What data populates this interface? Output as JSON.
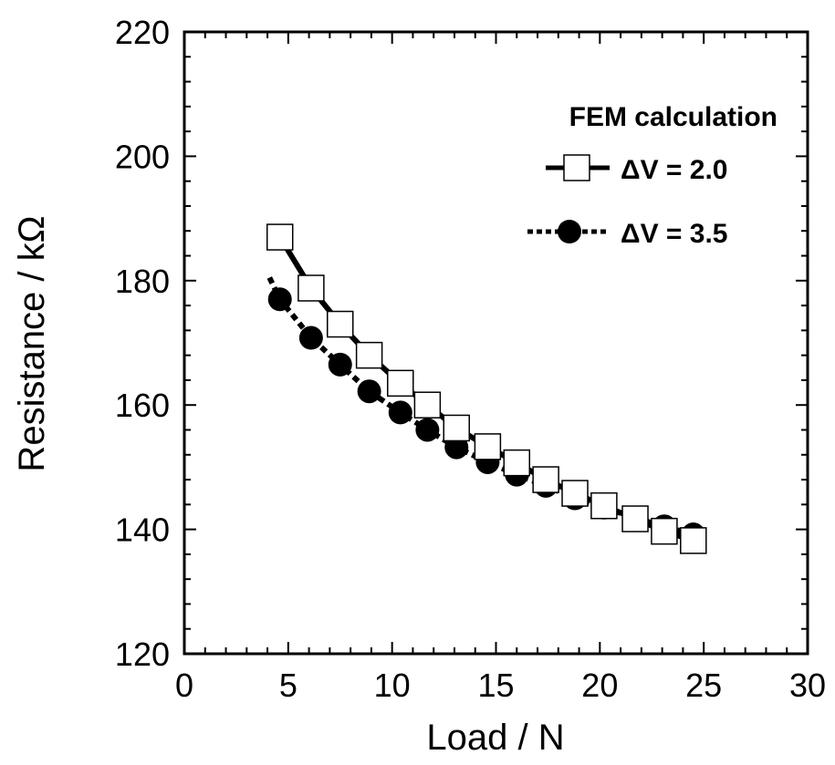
{
  "chart_data": {
    "type": "line",
    "title": "",
    "xlabel": "Load / N",
    "ylabel": "Resistance / kΩ",
    "xlim": [
      0,
      30
    ],
    "ylim": [
      120,
      220
    ],
    "x_ticks": [
      "0",
      "5",
      "10",
      "15",
      "20",
      "25",
      "30"
    ],
    "y_ticks": [
      "120",
      "140",
      "160",
      "180",
      "200",
      "220"
    ],
    "grid": false,
    "legend": {
      "title": "FEM calculation",
      "placement": "top-right"
    },
    "series": [
      {
        "name": "ΔV = 2.0",
        "marker": "open-square",
        "line_style": "solid",
        "color": "#000000",
        "x": [
          4.6,
          6.1,
          7.5,
          8.9,
          10.4,
          11.7,
          13.1,
          14.6,
          16.0,
          17.4,
          18.8,
          20.2,
          21.7,
          23.1,
          24.5
        ],
        "y": [
          187.0,
          178.8,
          173.0,
          168.0,
          163.5,
          160.0,
          156.3,
          153.3,
          150.7,
          148.0,
          145.8,
          143.8,
          141.7,
          139.7,
          138.2
        ]
      },
      {
        "name": "ΔV = 3.5",
        "marker": "filled-circle",
        "line_style": "dashed",
        "color": "#000000",
        "x": [
          4.6,
          6.1,
          7.5,
          8.9,
          10.4,
          11.7,
          13.1,
          14.6,
          16.0,
          17.4,
          18.8,
          20.2,
          21.7,
          23.1,
          24.5
        ],
        "y": [
          177.0,
          170.8,
          166.5,
          162.2,
          158.8,
          156.0,
          153.2,
          150.8,
          148.8,
          147.0,
          145.0,
          143.5,
          141.8,
          140.5,
          139.2
        ]
      }
    ]
  }
}
